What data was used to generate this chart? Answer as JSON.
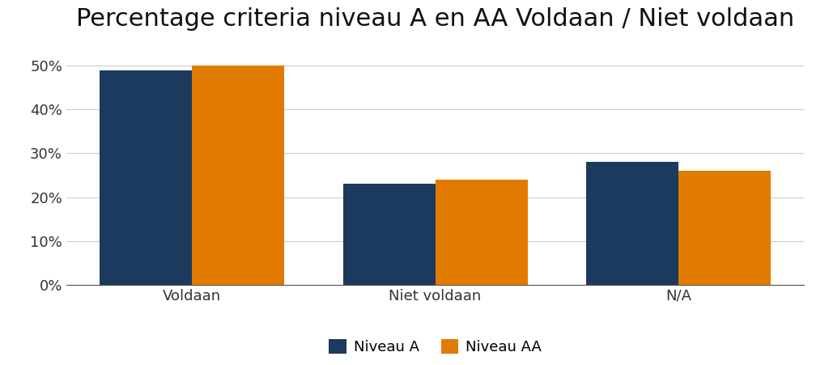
{
  "title": "Percentage criteria niveau A en AA Voldaan / Niet voldaan",
  "categories": [
    "Voldaan",
    "Niet voldaan",
    "N/A"
  ],
  "niveau_a": [
    0.49,
    0.23,
    0.28
  ],
  "niveau_aa": [
    0.5,
    0.24,
    0.26
  ],
  "color_a": "#1c3a5e",
  "color_aa": "#e07b00",
  "legend_a": "Niveau A",
  "legend_aa": "Niveau AA",
  "ylim": [
    0,
    0.55
  ],
  "yticks": [
    0.0,
    0.1,
    0.2,
    0.3,
    0.4,
    0.5
  ],
  "ytick_labels": [
    "0%",
    "10%",
    "20%",
    "30%",
    "40%",
    "50%"
  ],
  "background_color": "#ffffff",
  "bar_width": 0.38,
  "title_fontsize": 22,
  "tick_fontsize": 13,
  "legend_fontsize": 13
}
